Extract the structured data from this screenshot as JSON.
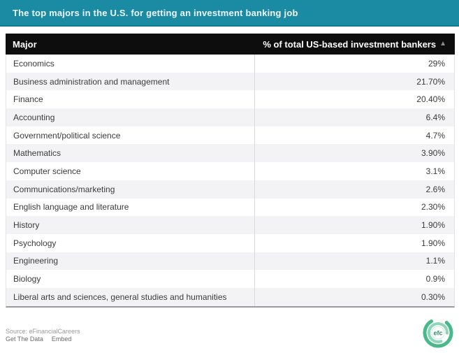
{
  "title_bar": {
    "title": "The top majors in the U.S. for getting an investment banking job"
  },
  "table": {
    "columns": [
      {
        "label": "Major"
      },
      {
        "label": "% of total US-based investment bankers",
        "sort_icon": "▲"
      }
    ],
    "rows": [
      {
        "major": "Economics",
        "value": "29%"
      },
      {
        "major": "Business administration and management",
        "value": "21.70%"
      },
      {
        "major": "Finance",
        "value": "20.40%"
      },
      {
        "major": "Accounting",
        "value": "6.4%"
      },
      {
        "major": "Government/political science",
        "value": "4.7%"
      },
      {
        "major": "Mathematics",
        "value": "3.90%"
      },
      {
        "major": "Computer science",
        "value": "3.1%"
      },
      {
        "major": "Communications/marketing",
        "value": "2.6%"
      },
      {
        "major": "English language and literature",
        "value": "2.30%"
      },
      {
        "major": "History",
        "value": "1.90%"
      },
      {
        "major": "Psychology",
        "value": "1.90%"
      },
      {
        "major": "Engineering",
        "value": "1.1%"
      },
      {
        "major": "Biology",
        "value": "0.9%"
      },
      {
        "major": "Liberal arts and sciences, general studies and humanities",
        "value": "0.30%"
      }
    ]
  },
  "footer": {
    "source": "Source: eFinancialCareers",
    "links": [
      {
        "label": "Get The Data"
      },
      {
        "label": "Embed"
      }
    ],
    "logo_text": "efc"
  },
  "colors": {
    "title_bar_teal": "#1b8ba3",
    "header_black": "#0d0d0d",
    "row_alt_gray": "#f3f3f5",
    "row_text": "#3b3b3b",
    "sort_icon_gray": "#8c8c8c",
    "logo_green": "#49b88a",
    "logo_inner_green": "#8ed6b9"
  },
  "chart_data": {
    "type": "table",
    "title": "The top majors in the U.S. for getting an investment banking job",
    "columns": [
      "Major",
      "% of total US-based investment bankers"
    ],
    "categories": [
      "Economics",
      "Business administration and management",
      "Finance",
      "Accounting",
      "Government/political science",
      "Mathematics",
      "Computer science",
      "Communications/marketing",
      "English language and literature",
      "History",
      "Psychology",
      "Engineering",
      "Biology",
      "Liberal arts and sciences, general studies and humanities"
    ],
    "values": [
      29,
      21.7,
      20.4,
      6.4,
      4.7,
      3.9,
      3.1,
      2.6,
      2.3,
      1.9,
      1.9,
      1.1,
      0.9,
      0.3
    ],
    "value_unit": "%",
    "sort_order": "descending by value",
    "source": "eFinancialCareers"
  }
}
